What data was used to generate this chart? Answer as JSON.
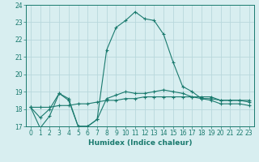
{
  "x": [
    0,
    1,
    2,
    3,
    4,
    5,
    6,
    7,
    8,
    9,
    10,
    11,
    12,
    13,
    14,
    15,
    16,
    17,
    18,
    19,
    20,
    21,
    22,
    23
  ],
  "line1": [
    18.1,
    16.9,
    17.6,
    18.9,
    18.5,
    17.0,
    17.0,
    17.4,
    21.4,
    22.7,
    23.1,
    23.6,
    23.2,
    23.1,
    22.3,
    20.7,
    19.3,
    19.0,
    18.6,
    18.5,
    18.3,
    18.3,
    18.3,
    18.2
  ],
  "line2": [
    18.1,
    18.1,
    18.1,
    18.2,
    18.2,
    18.3,
    18.3,
    18.4,
    18.5,
    18.5,
    18.6,
    18.6,
    18.7,
    18.7,
    18.7,
    18.7,
    18.7,
    18.7,
    18.7,
    18.7,
    18.5,
    18.5,
    18.5,
    18.5
  ],
  "line3": [
    18.1,
    17.5,
    18.0,
    18.9,
    18.6,
    17.0,
    17.0,
    17.4,
    18.6,
    18.8,
    19.0,
    18.9,
    18.9,
    19.0,
    19.1,
    19.0,
    18.9,
    18.7,
    18.6,
    18.6,
    18.5,
    18.5,
    18.5,
    18.4
  ],
  "line_color": "#1a7a6e",
  "bg_color": "#d8eef0",
  "grid_color": "#b8d8dc",
  "xlabel": "Humidex (Indice chaleur)",
  "ylim": [
    17,
    24
  ],
  "xlim": [
    -0.5,
    23.5
  ],
  "yticks": [
    17,
    18,
    19,
    20,
    21,
    22,
    23,
    24
  ],
  "xticks": [
    0,
    1,
    2,
    3,
    4,
    5,
    6,
    7,
    8,
    9,
    10,
    11,
    12,
    13,
    14,
    15,
    16,
    17,
    18,
    19,
    20,
    21,
    22,
    23
  ],
  "xlabel_fontsize": 6.5,
  "tick_fontsize": 5.5
}
